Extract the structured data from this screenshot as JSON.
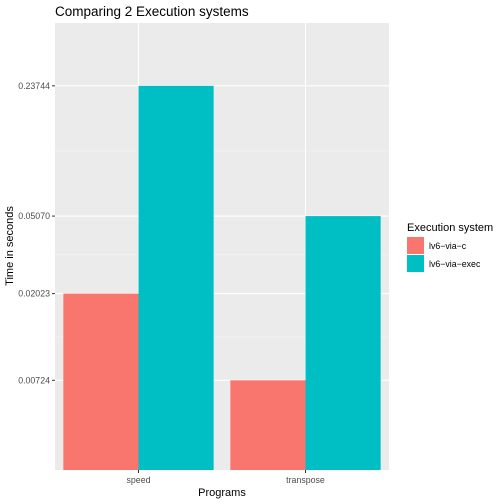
{
  "chart_data": {
    "type": "bar",
    "title": "Comparing 2 Execution systems",
    "xlabel": "Programs",
    "ylabel": "Time in seconds",
    "categories": [
      "speed",
      "transpose"
    ],
    "series": [
      {
        "name": "lv6−via−c",
        "color": "#F8766D",
        "values": [
          0.02023,
          0.00724
        ]
      },
      {
        "name": "lv6−via−exec",
        "color": "#00BFC4",
        "values": [
          0.23744,
          0.0507
        ]
      }
    ],
    "yscale": "log",
    "ylim": [
      0.0025,
      0.5
    ],
    "yticks": [
      {
        "value": 0.00724,
        "label": "0.00724"
      },
      {
        "value": 0.02023,
        "label": "0.02023"
      },
      {
        "value": 0.0507,
        "label": "0.05070"
      },
      {
        "value": 0.23744,
        "label": "0.23744"
      }
    ],
    "legend": {
      "title": "Execution system",
      "position": "right"
    },
    "grid": true,
    "panel_background": "#EBEBEB",
    "grid_color": "#FFFFFF"
  }
}
